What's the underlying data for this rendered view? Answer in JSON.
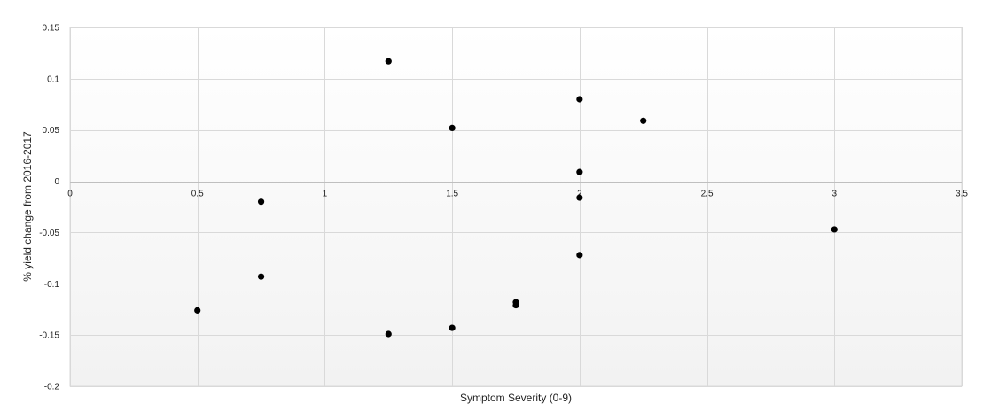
{
  "chart_data": {
    "type": "scatter",
    "title": "",
    "xlabel": "Symptom Severity (0-9)",
    "ylabel": "% yield change from 2016-2017",
    "xlim": [
      0,
      3.5
    ],
    "ylim": [
      -0.2,
      0.15
    ],
    "x_ticks": [
      "0",
      "0.5",
      "1",
      "1.5",
      "2",
      "2.5",
      "3",
      "3.5"
    ],
    "y_ticks": [
      "0.15",
      "0.1",
      "0.05",
      "0",
      "-0.05",
      "-0.1",
      "-0.15",
      "-0.2"
    ],
    "x_tick_values": [
      0,
      0.5,
      1,
      1.5,
      2,
      2.5,
      3,
      3.5
    ],
    "y_tick_values": [
      0.15,
      0.1,
      0.05,
      0,
      -0.05,
      -0.1,
      -0.15,
      -0.2
    ],
    "grid": true,
    "legend": "none",
    "marker_color": "#000000",
    "series": [
      {
        "points": [
          {
            "x": 0.5,
            "y": -0.126
          },
          {
            "x": 0.75,
            "y": -0.02
          },
          {
            "x": 0.75,
            "y": -0.093
          },
          {
            "x": 1.25,
            "y": 0.117
          },
          {
            "x": 1.25,
            "y": -0.149
          },
          {
            "x": 1.5,
            "y": 0.052
          },
          {
            "x": 1.5,
            "y": -0.143
          },
          {
            "x": 1.75,
            "y": -0.118
          },
          {
            "x": 1.75,
            "y": -0.121
          },
          {
            "x": 2.0,
            "y": 0.08
          },
          {
            "x": 2.0,
            "y": 0.009
          },
          {
            "x": 2.0,
            "y": -0.016
          },
          {
            "x": 2.0,
            "y": -0.072
          },
          {
            "x": 2.25,
            "y": 0.059
          },
          {
            "x": 3.0,
            "y": -0.047
          }
        ]
      }
    ]
  }
}
